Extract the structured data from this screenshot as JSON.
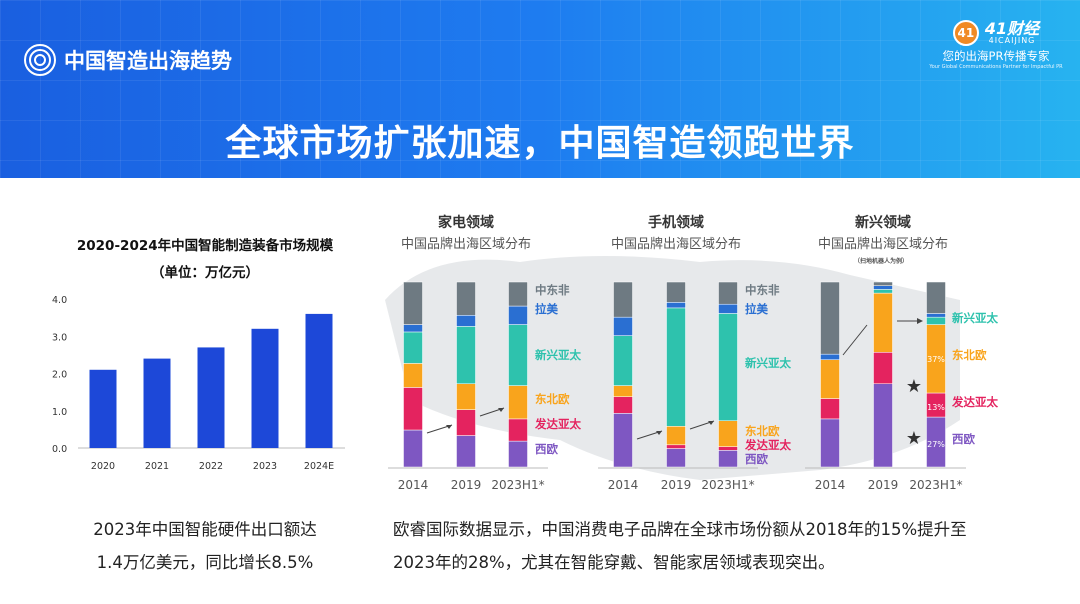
{
  "header": {
    "brand": "中国智造出海趋势",
    "title": "全球市场扩张加速，中国智造领跑世界",
    "logo": {
      "badge": "41",
      "name": "41财经",
      "en": "4ICAIJING",
      "slogan": "您的出海PR传播专家",
      "tagline": "Your Global Communications Partner for Impactful PR"
    }
  },
  "colors": {
    "中东非": "#6e7a82",
    "拉美": "#2a6fd2",
    "新兴亚太": "#2ec2ad",
    "东北欧": "#f9a41c",
    "发达亚太": "#e4235f",
    "西欧": "#7e57c2",
    "bar": "#1d48d8"
  },
  "chart_data": [
    {
      "type": "bar",
      "title": "2020-2024年中国智能制造装备市场规模",
      "subtitle": "（单位：万亿元）",
      "categories": [
        "2020",
        "2021",
        "2022",
        "2023",
        "2024E"
      ],
      "values": [
        2.1,
        2.4,
        2.7,
        3.2,
        3.6
      ],
      "ylim": [
        0,
        4
      ],
      "yticks": [
        "0.0",
        "1.0",
        "2.0",
        "3.0",
        "4.0"
      ],
      "grid": false
    },
    {
      "type": "bar",
      "stacked": true,
      "percent": true,
      "title": "家电领域",
      "subtitle": "中国品牌出海区域分布",
      "categories": [
        "2014",
        "2019",
        "2023H1*"
      ],
      "series": [
        {
          "name": "西欧",
          "values": [
            20,
            17,
            14
          ]
        },
        {
          "name": "发达亚太",
          "values": [
            23,
            14,
            12
          ]
        },
        {
          "name": "东北欧",
          "values": [
            13,
            14,
            18
          ]
        },
        {
          "name": "新兴亚太",
          "values": [
            17,
            31,
            33
          ]
        },
        {
          "name": "拉美",
          "values": [
            4,
            6,
            10
          ]
        },
        {
          "name": "中东非",
          "values": [
            23,
            18,
            13
          ]
        }
      ]
    },
    {
      "type": "bar",
      "stacked": true,
      "percent": true,
      "title": "手机领域",
      "subtitle": "中国品牌出海区域分布",
      "categories": [
        "2014",
        "2019",
        "2023H1*"
      ],
      "series": [
        {
          "name": "西欧",
          "values": [
            29,
            10,
            9
          ]
        },
        {
          "name": "发达亚太",
          "values": [
            9,
            2,
            2
          ]
        },
        {
          "name": "东北欧",
          "values": [
            6,
            10,
            14
          ]
        },
        {
          "name": "新兴亚太",
          "values": [
            27,
            64,
            58
          ]
        },
        {
          "name": "拉美",
          "values": [
            10,
            3,
            5
          ]
        },
        {
          "name": "中东非",
          "values": [
            19,
            11,
            12
          ]
        }
      ]
    },
    {
      "type": "bar",
      "stacked": true,
      "percent": true,
      "title": "新兴领域",
      "subtitle": "中国品牌出海区域分布",
      "note": "（扫地机器人为例）",
      "categories": [
        "2014",
        "2019",
        "2023H1*"
      ],
      "series": [
        {
          "name": "西欧",
          "values": [
            26,
            45,
            27
          ]
        },
        {
          "name": "发达亚太",
          "values": [
            11,
            17,
            13
          ]
        },
        {
          "name": "东北欧",
          "values": [
            21,
            32,
            37
          ]
        },
        {
          "name": "新兴亚太",
          "values": [
            0,
            2,
            4
          ]
        },
        {
          "name": "拉美",
          "values": [
            3,
            2,
            2
          ]
        },
        {
          "name": "中东非",
          "values": [
            39,
            2,
            17
          ]
        }
      ],
      "data_labels": [
        "37%",
        "13%",
        "27%"
      ]
    }
  ],
  "captions": {
    "left": [
      "2023年中国智能硬件出口额达",
      "1.4万亿美元，同比增长8.5%"
    ],
    "right": [
      "欧睿国际数据显示，中国消费电子品牌在全球市场份额从2018年的15%提升至",
      "2023年的28%，尤其在智能穿戴、智能家居领域表现突出。"
    ]
  }
}
